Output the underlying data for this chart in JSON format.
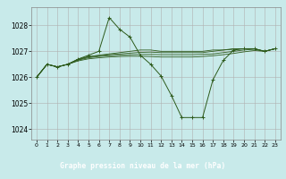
{
  "title": "Graphe pression niveau de la mer (hPa)",
  "plot_bg_color": "#c8eaea",
  "fig_bg_color": "#c8eaea",
  "label_bg_color": "#3a6b3a",
  "label_text_color": "#ffffff",
  "grid_color": "#b0b0b0",
  "line_color": "#2d5a1b",
  "x_ticks": [
    0,
    1,
    2,
    3,
    4,
    5,
    6,
    7,
    8,
    9,
    10,
    11,
    12,
    13,
    14,
    15,
    16,
    17,
    18,
    19,
    20,
    21,
    22,
    23
  ],
  "x_tick_labels": [
    "0",
    "1",
    "2",
    "3",
    "4",
    "5",
    "6",
    "7",
    "8",
    "9",
    "10",
    "11",
    "12",
    "13",
    "14",
    "15",
    "16",
    "17",
    "18",
    "19",
    "20",
    "21",
    "22",
    "23"
  ],
  "y_ticks": [
    1024,
    1025,
    1026,
    1027,
    1028
  ],
  "ylim": [
    1023.6,
    1028.7
  ],
  "xlim": [
    -0.5,
    23.5
  ],
  "series": [
    [
      1026.0,
      1026.5,
      1026.4,
      1026.5,
      1026.7,
      1026.85,
      1027.0,
      1028.3,
      1027.85,
      1027.55,
      1026.85,
      1026.5,
      1026.05,
      1025.3,
      1024.45,
      1024.45,
      1024.45,
      1025.9,
      1026.65,
      1027.05,
      1027.1,
      1027.1,
      1027.0,
      1027.1
    ],
    [
      1026.0,
      1026.5,
      1026.4,
      1026.5,
      1026.7,
      1026.8,
      1026.85,
      1026.9,
      1026.95,
      1027.0,
      1027.05,
      1027.05,
      1027.0,
      1027.0,
      1027.0,
      1027.0,
      1027.0,
      1027.05,
      1027.05,
      1027.1,
      1027.1,
      1027.1,
      1027.0,
      1027.1
    ],
    [
      1026.0,
      1026.5,
      1026.4,
      1026.5,
      1026.68,
      1026.78,
      1026.83,
      1026.87,
      1026.9,
      1026.93,
      1026.96,
      1026.97,
      1026.95,
      1026.95,
      1026.95,
      1026.95,
      1026.95,
      1027.0,
      1027.05,
      1027.08,
      1027.1,
      1027.1,
      1027.0,
      1027.1
    ],
    [
      1026.0,
      1026.5,
      1026.4,
      1026.5,
      1026.66,
      1026.75,
      1026.8,
      1026.83,
      1026.85,
      1026.87,
      1026.88,
      1026.88,
      1026.87,
      1026.87,
      1026.87,
      1026.87,
      1026.88,
      1026.9,
      1026.95,
      1027.0,
      1027.05,
      1027.08,
      1027.0,
      1027.1
    ],
    [
      1026.0,
      1026.5,
      1026.4,
      1026.5,
      1026.63,
      1026.71,
      1026.75,
      1026.78,
      1026.8,
      1026.81,
      1026.81,
      1026.8,
      1026.78,
      1026.78,
      1026.78,
      1026.78,
      1026.8,
      1026.83,
      1026.87,
      1026.92,
      1026.98,
      1027.03,
      1027.0,
      1027.1
    ]
  ],
  "main_series_idx": 0
}
